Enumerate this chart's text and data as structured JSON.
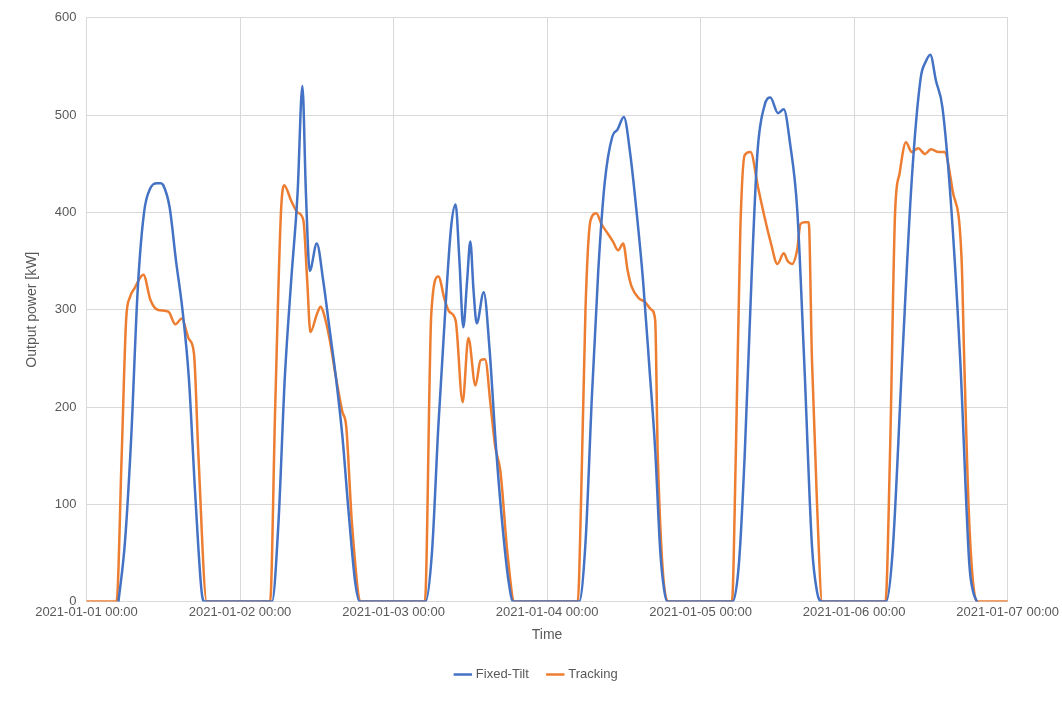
{
  "chart_data": {
    "type": "line",
    "xlabel": "Time",
    "ylabel": "Output power [kW]",
    "xlim": [
      "2021-01-01T00:00",
      "2021-01-07T00:00"
    ],
    "xticks": [
      {
        "value": "2021-01-01T00:00",
        "label": "2021-01-01 00:00"
      },
      {
        "value": "2021-01-02T00:00",
        "label": "2021-01-02 00:00"
      },
      {
        "value": "2021-01-03T00:00",
        "label": "2021-01-03 00:00"
      },
      {
        "value": "2021-01-04T00:00",
        "label": "2021-01-04 00:00"
      },
      {
        "value": "2021-01-05T00:00",
        "label": "2021-01-05 00:00"
      },
      {
        "value": "2021-01-06T00:00",
        "label": "2021-01-06 00:00"
      },
      {
        "value": "2021-01-07T00:00",
        "label": "2021-01-07 00:00"
      }
    ],
    "ylim": [
      0,
      600
    ],
    "yticks": [
      0,
      100,
      200,
      300,
      400,
      500,
      600
    ],
    "grid": true,
    "legend": "bottom",
    "marker": "none",
    "line_style": "solid",
    "series": [
      {
        "name": "Fixed-Tilt",
        "color": "#4472c4",
        "x": [
          "2021-01-01T05:00",
          "2021-01-01T06:00",
          "2021-01-01T07:00",
          "2021-01-01T08:00",
          "2021-01-01T09:00",
          "2021-01-01T10:00",
          "2021-01-01T11:00",
          "2021-01-01T11:36",
          "2021-01-01T12:00",
          "2021-01-01T13:00",
          "2021-01-01T14:00",
          "2021-01-01T15:00",
          "2021-01-01T16:00",
          "2021-01-01T17:00",
          "2021-01-01T18:00",
          "2021-01-01T18:30",
          "2021-01-02T05:00",
          "2021-01-02T06:00",
          "2021-01-02T07:00",
          "2021-01-02T08:00",
          "2021-01-02T09:00",
          "2021-01-02T09:45",
          "2021-01-02T10:18",
          "2021-01-02T10:54",
          "2021-01-02T12:00",
          "2021-01-02T13:00",
          "2021-01-02T14:00",
          "2021-01-02T15:00",
          "2021-01-02T16:00",
          "2021-01-02T17:00",
          "2021-01-02T18:00",
          "2021-01-02T18:42",
          "2021-01-03T05:00",
          "2021-01-03T06:00",
          "2021-01-03T07:00",
          "2021-01-03T08:00",
          "2021-01-03T09:00",
          "2021-01-03T09:42",
          "2021-01-03T10:18",
          "2021-01-03T10:54",
          "2021-01-03T11:30",
          "2021-01-03T12:00",
          "2021-01-03T12:30",
          "2021-01-03T13:00",
          "2021-01-03T14:06",
          "2021-01-03T15:00",
          "2021-01-03T16:00",
          "2021-01-03T17:00",
          "2021-01-03T18:00",
          "2021-01-03T18:42",
          "2021-01-04T05:00",
          "2021-01-04T06:00",
          "2021-01-04T07:00",
          "2021-01-04T08:00",
          "2021-01-04T09:00",
          "2021-01-04T10:12",
          "2021-01-04T11:00",
          "2021-01-04T12:00",
          "2021-01-04T13:00",
          "2021-01-04T14:00",
          "2021-01-04T15:00",
          "2021-01-04T16:00",
          "2021-01-04T16:54",
          "2021-01-04T17:42",
          "2021-01-04T18:18",
          "2021-01-04T18:48",
          "2021-01-05T05:00",
          "2021-01-05T06:00",
          "2021-01-05T06:54",
          "2021-01-05T08:00",
          "2021-01-05T08:54",
          "2021-01-05T10:00",
          "2021-01-05T10:54",
          "2021-01-05T12:06",
          "2021-01-05T13:00",
          "2021-01-05T14:00",
          "2021-01-05T15:06",
          "2021-01-05T16:12",
          "2021-01-05T17:24",
          "2021-01-05T18:12",
          "2021-01-05T19:00",
          "2021-01-06T05:00",
          "2021-01-06T06:00",
          "2021-01-06T07:30",
          "2021-01-06T09:00",
          "2021-01-06T10:24",
          "2021-01-06T11:12",
          "2021-01-06T11:54",
          "2021-01-06T12:48",
          "2021-01-06T13:48",
          "2021-01-06T15:12",
          "2021-01-06T16:36",
          "2021-01-06T18:00",
          "2021-01-06T18:36",
          "2021-01-06T19:12"
        ],
        "values": [
          0,
          60,
          170,
          320,
          400,
          425,
          430,
          430,
          428,
          405,
          350,
          300,
          230,
          110,
          10,
          0,
          0,
          80,
          230,
          330,
          420,
          530,
          420,
          340,
          368,
          330,
          280,
          230,
          170,
          90,
          20,
          0,
          0,
          50,
          180,
          290,
          385,
          408,
          350,
          282,
          330,
          370,
          320,
          286,
          318,
          260,
          160,
          80,
          20,
          0,
          0,
          60,
          210,
          340,
          430,
          478,
          485,
          498,
          460,
          400,
          330,
          240,
          156,
          51,
          12,
          0,
          0,
          40,
          152,
          339,
          463,
          510,
          518,
          502,
          506,
          470,
          403,
          246,
          58,
          10,
          0,
          0,
          50,
          246,
          433,
          538,
          555,
          562,
          535,
          508,
          403,
          246,
          39,
          10,
          0
        ]
      },
      {
        "name": "Tracking",
        "color": "#ed7d31",
        "x": [
          "2021-01-01T00:00",
          "2021-01-01T04:42",
          "2021-01-01T05:30",
          "2021-01-01T06:12",
          "2021-01-01T06:48",
          "2021-01-01T07:30",
          "2021-01-01T08:54",
          "2021-01-01T10:00",
          "2021-01-01T11:06",
          "2021-01-01T12:48",
          "2021-01-01T13:54",
          "2021-01-01T14:54",
          "2021-01-01T16:00",
          "2021-01-01T16:48",
          "2021-01-01T17:30",
          "2021-01-01T18:48",
          "2021-01-02T04:42",
          "2021-01-02T05:30",
          "2021-01-02T06:24",
          "2021-01-02T06:54",
          "2021-01-02T08:00",
          "2021-01-02T09:00",
          "2021-01-02T09:54",
          "2021-01-02T10:30",
          "2021-01-02T11:00",
          "2021-01-02T12:00",
          "2021-01-02T12:36",
          "2021-01-02T13:00",
          "2021-01-02T14:00",
          "2021-01-02T15:00",
          "2021-01-02T16:00",
          "2021-01-02T16:36",
          "2021-01-02T17:30",
          "2021-01-02T18:54",
          "2021-01-03T04:54",
          "2021-01-03T05:54",
          "2021-01-03T07:00",
          "2021-01-03T08:00",
          "2021-01-03T08:42",
          "2021-01-03T09:42",
          "2021-01-03T10:48",
          "2021-01-03T11:42",
          "2021-01-03T12:48",
          "2021-01-03T13:36",
          "2021-01-03T14:18",
          "2021-01-03T15:12",
          "2021-01-03T15:54",
          "2021-01-03T16:42",
          "2021-01-03T17:48",
          "2021-01-03T18:54",
          "2021-01-04T04:48",
          "2021-01-04T05:18",
          "2021-01-04T06:00",
          "2021-01-04T06:48",
          "2021-01-04T07:42",
          "2021-01-04T08:30",
          "2021-01-04T09:18",
          "2021-01-04T10:18",
          "2021-01-04T11:06",
          "2021-01-04T11:54",
          "2021-01-04T12:36",
          "2021-01-04T13:12",
          "2021-01-04T14:18",
          "2021-01-04T15:18",
          "2021-01-04T16:18",
          "2021-01-04T16:54",
          "2021-01-04T17:18",
          "2021-01-04T19:00",
          "2021-01-05T04:54",
          "2021-01-05T05:30",
          "2021-01-05T06:12",
          "2021-01-05T06:54",
          "2021-01-05T07:48",
          "2021-01-05T09:00",
          "2021-01-05T10:00",
          "2021-01-05T11:00",
          "2021-01-05T12:00",
          "2021-01-05T13:00",
          "2021-01-05T13:36",
          "2021-01-05T14:18",
          "2021-01-05T15:06",
          "2021-01-05T15:36",
          "2021-01-05T16:12",
          "2021-01-05T16:54",
          "2021-01-05T17:24",
          "2021-01-05T18:12",
          "2021-01-05T19:00",
          "2021-01-06T04:54",
          "2021-01-06T05:36",
          "2021-01-06T06:24",
          "2021-01-06T07:06",
          "2021-01-06T08:06",
          "2021-01-06T09:00",
          "2021-01-06T10:00",
          "2021-01-06T11:06",
          "2021-01-06T12:00",
          "2021-01-06T13:12",
          "2021-01-06T14:06",
          "2021-01-06T15:24",
          "2021-01-06T16:48",
          "2021-01-06T17:12",
          "2021-01-06T18:00",
          "2021-01-06T19:12",
          "2021-01-07T00:00"
        ],
        "values": [
          0,
          0,
          150,
          290,
          313,
          322,
          336,
          310,
          300,
          298,
          285,
          291,
          270,
          255,
          150,
          0,
          0,
          200,
          400,
          428,
          412,
          400,
          392,
          330,
          277,
          295,
          303,
          298,
          270,
          230,
          195,
          180,
          80,
          0,
          0,
          296,
          334,
          310,
          298,
          289,
          205,
          271,
          222,
          248,
          249,
          200,
          159,
          134,
          50,
          0,
          0,
          100,
          300,
          392,
          399,
          388,
          380,
          370,
          361,
          368,
          340,
          324,
          312,
          308,
          300,
          289,
          150,
          0,
          0,
          150,
          380,
          459,
          462,
          425,
          395,
          368,
          347,
          358,
          350,
          347,
          362,
          388,
          390,
          390,
          250,
          100,
          0,
          0,
          150,
          400,
          440,
          472,
          462,
          466,
          460,
          465,
          462,
          462,
          422,
          351,
          250,
          80,
          0,
          0
        ]
      }
    ]
  }
}
